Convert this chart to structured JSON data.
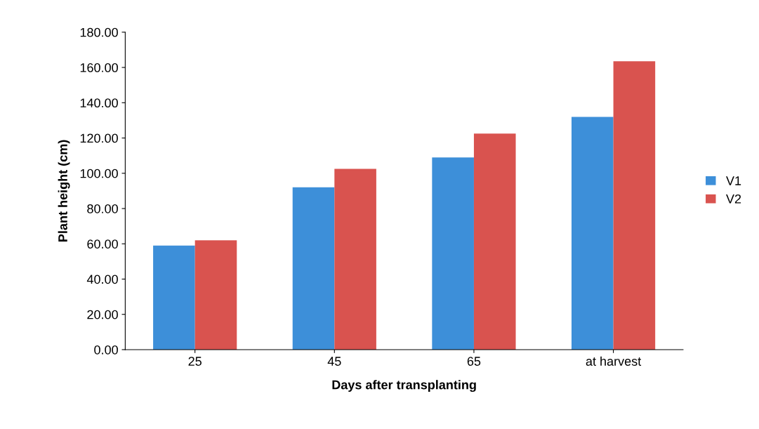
{
  "chart_data": {
    "type": "bar",
    "xlabel": "Days after transplanting",
    "ylabel": "Plant height (cm)",
    "categories": [
      "25",
      "45",
      "65",
      "at harvest"
    ],
    "series": [
      {
        "name": "V1",
        "color": "#3d8fd9",
        "values": [
          59,
          92,
          109,
          132
        ]
      },
      {
        "name": "V2",
        "color": "#d9534f",
        "values": [
          62,
          102.5,
          122.5,
          163.5
        ]
      }
    ],
    "ylim": [
      0,
      180
    ],
    "yticks": [
      {
        "value": 0,
        "label": "0.00"
      },
      {
        "value": 20,
        "label": "20.00"
      },
      {
        "value": 40,
        "label": "40.00"
      },
      {
        "value": 60,
        "label": "60.00"
      },
      {
        "value": 80,
        "label": "80.00"
      },
      {
        "value": 100,
        "label": "100.00"
      },
      {
        "value": 120,
        "label": "120.00"
      },
      {
        "value": 140,
        "label": "140.00"
      },
      {
        "value": 160,
        "label": "160.00"
      },
      {
        "value": 180,
        "label": "180.00"
      }
    ],
    "legend": "right"
  }
}
